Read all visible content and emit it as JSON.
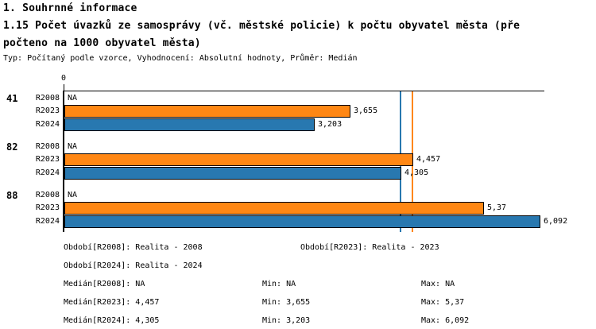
{
  "header": {
    "title": "1. Souhrnné informace",
    "subtitle_line1": "1.15 Počet úvazků ze samosprávy (vč. městské policie) k počtu obyvatel města (пře",
    "subtitle_line2": "počteno na 1000 obyvatel města)",
    "meta": "Typ: Počítaný podle vzorce, Vyhodnocení: Absolutní hodnoty, Průměr: Medián"
  },
  "colors": {
    "r2023_orange": "#ff8714",
    "r2024_blue": "#2878b0",
    "axis_black": "#000000"
  },
  "chart_data": {
    "type": "bar",
    "orientation": "horizontal",
    "title": "1.15 Počet úvazků ze samosprávy (vč. městské policie) k počtu obyvatel města (přepočteno na 1000 obyvatel města)",
    "xlabel": "",
    "ylabel": "",
    "xlim": [
      0,
      6.15
    ],
    "axis_zero_label": "0",
    "grid": false,
    "legend_position": "none",
    "groups": [
      {
        "label": "41",
        "rows": [
          {
            "series": "R2008",
            "value": null,
            "display": "NA"
          },
          {
            "series": "R2023",
            "value": 3.655,
            "display": "3,655",
            "color": "#ff8714"
          },
          {
            "series": "R2024",
            "value": 3.203,
            "display": "3,203",
            "color": "#2878b0"
          }
        ]
      },
      {
        "label": "82",
        "rows": [
          {
            "series": "R2008",
            "value": null,
            "display": "NA"
          },
          {
            "series": "R2023",
            "value": 4.457,
            "display": "4,457",
            "color": "#ff8714"
          },
          {
            "series": "R2024",
            "value": 4.305,
            "display": "4,305",
            "color": "#2878b0"
          }
        ]
      },
      {
        "label": "88",
        "rows": [
          {
            "series": "R2008",
            "value": null,
            "display": "NA"
          },
          {
            "series": "R2023",
            "value": 5.37,
            "display": "5,37",
            "color": "#ff8714"
          },
          {
            "series": "R2024",
            "value": 6.092,
            "display": "6,092",
            "color": "#2878b0"
          }
        ]
      }
    ],
    "reference_lines": [
      {
        "name": "median-r2023",
        "value": 4.457,
        "color": "#ff8714"
      },
      {
        "name": "median-r2024",
        "value": 4.305,
        "color": "#2878b0"
      }
    ]
  },
  "stats": {
    "rows": [
      {
        "cells": [
          {
            "label": "Období[R2008]: Realita - 2008",
            "col": "c1"
          },
          {
            "label": "Období[R2023]: Realita - 2023",
            "col": "c2w"
          }
        ]
      },
      {
        "cells": [
          {
            "label": "Období[R2024]: Realita - 2024",
            "col": "c1"
          }
        ]
      },
      {
        "cells": [
          {
            "label": "Medián[R2008]: NA",
            "col": "c1"
          },
          {
            "label": "Min: NA",
            "col": "c2"
          },
          {
            "label": "Max: NA",
            "col": "c3"
          }
        ]
      },
      {
        "cells": [
          {
            "label": "Medián[R2023]: 4,457",
            "col": "c1"
          },
          {
            "label": "Min: 3,655",
            "col": "c2"
          },
          {
            "label": "Max: 5,37",
            "col": "c3"
          }
        ]
      },
      {
        "cells": [
          {
            "label": "Medián[R2024]: 4,305",
            "col": "c1"
          },
          {
            "label": "Min: 3,203",
            "col": "c2"
          },
          {
            "label": "Max: 6,092",
            "col": "c3"
          }
        ]
      }
    ]
  }
}
